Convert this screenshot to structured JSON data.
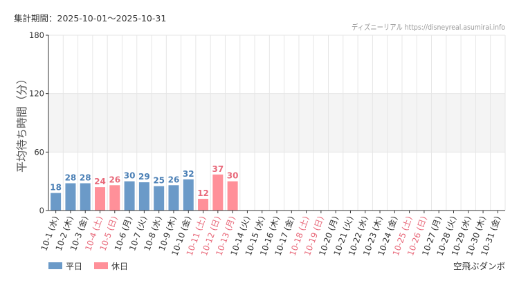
{
  "header": {
    "period": "集計期間：2025-10-01～2025-10-31",
    "source": "ディズニーリアル https://disneyreal.asumirai.info"
  },
  "footer": {
    "attraction": "空飛ぶダンボ"
  },
  "colors": {
    "weekday": "#6b9ac8",
    "holiday": "#ff9099",
    "weekday_text": "#4a7fb5",
    "holiday_text": "#e8697a",
    "band": "#f4f4f4",
    "grid": "#e6e6e6",
    "axis": "#333333"
  },
  "chart_data": {
    "type": "bar",
    "ylabel": "平均待ち時間（分）",
    "ylim": [
      0,
      180
    ],
    "yticks": [
      0,
      60,
      120,
      180
    ],
    "shaded_band": [
      60,
      120
    ],
    "grid": true,
    "legend_position": "bottom-left",
    "legend": [
      {
        "key": "weekday",
        "label": "平日"
      },
      {
        "key": "holiday",
        "label": "休日"
      }
    ],
    "categories": [
      "10-1 (水)",
      "10-2 (木)",
      "10-3 (金)",
      "10-4 (土)",
      "10-5 (日)",
      "10-6 (月)",
      "10-7 (火)",
      "10-8 (水)",
      "10-9 (木)",
      "10-10 (金)",
      "10-11 (土)",
      "10-12 (日)",
      "10-13 (月)",
      "10-14 (火)",
      "10-15 (水)",
      "10-16 (木)",
      "10-17 (金)",
      "10-18 (土)",
      "10-19 (日)",
      "10-20 (月)",
      "10-21 (火)",
      "10-22 (水)",
      "10-23 (木)",
      "10-24 (金)",
      "10-25 (土)",
      "10-26 (日)",
      "10-27 (月)",
      "10-28 (火)",
      "10-29 (水)",
      "10-30 (木)",
      "10-31 (金)"
    ],
    "values": [
      18,
      28,
      28,
      24,
      26,
      30,
      29,
      25,
      26,
      32,
      12,
      37,
      30,
      null,
      null,
      null,
      null,
      null,
      null,
      null,
      null,
      null,
      null,
      null,
      null,
      null,
      null,
      null,
      null,
      null,
      null
    ],
    "day_type": [
      "weekday",
      "weekday",
      "weekday",
      "holiday",
      "holiday",
      "weekday",
      "weekday",
      "weekday",
      "weekday",
      "weekday",
      "holiday",
      "holiday",
      "holiday",
      "weekday",
      "weekday",
      "weekday",
      "weekday",
      "holiday",
      "holiday",
      "weekday",
      "weekday",
      "weekday",
      "weekday",
      "weekday",
      "holiday",
      "holiday",
      "weekday",
      "weekday",
      "weekday",
      "weekday",
      "weekday"
    ]
  }
}
